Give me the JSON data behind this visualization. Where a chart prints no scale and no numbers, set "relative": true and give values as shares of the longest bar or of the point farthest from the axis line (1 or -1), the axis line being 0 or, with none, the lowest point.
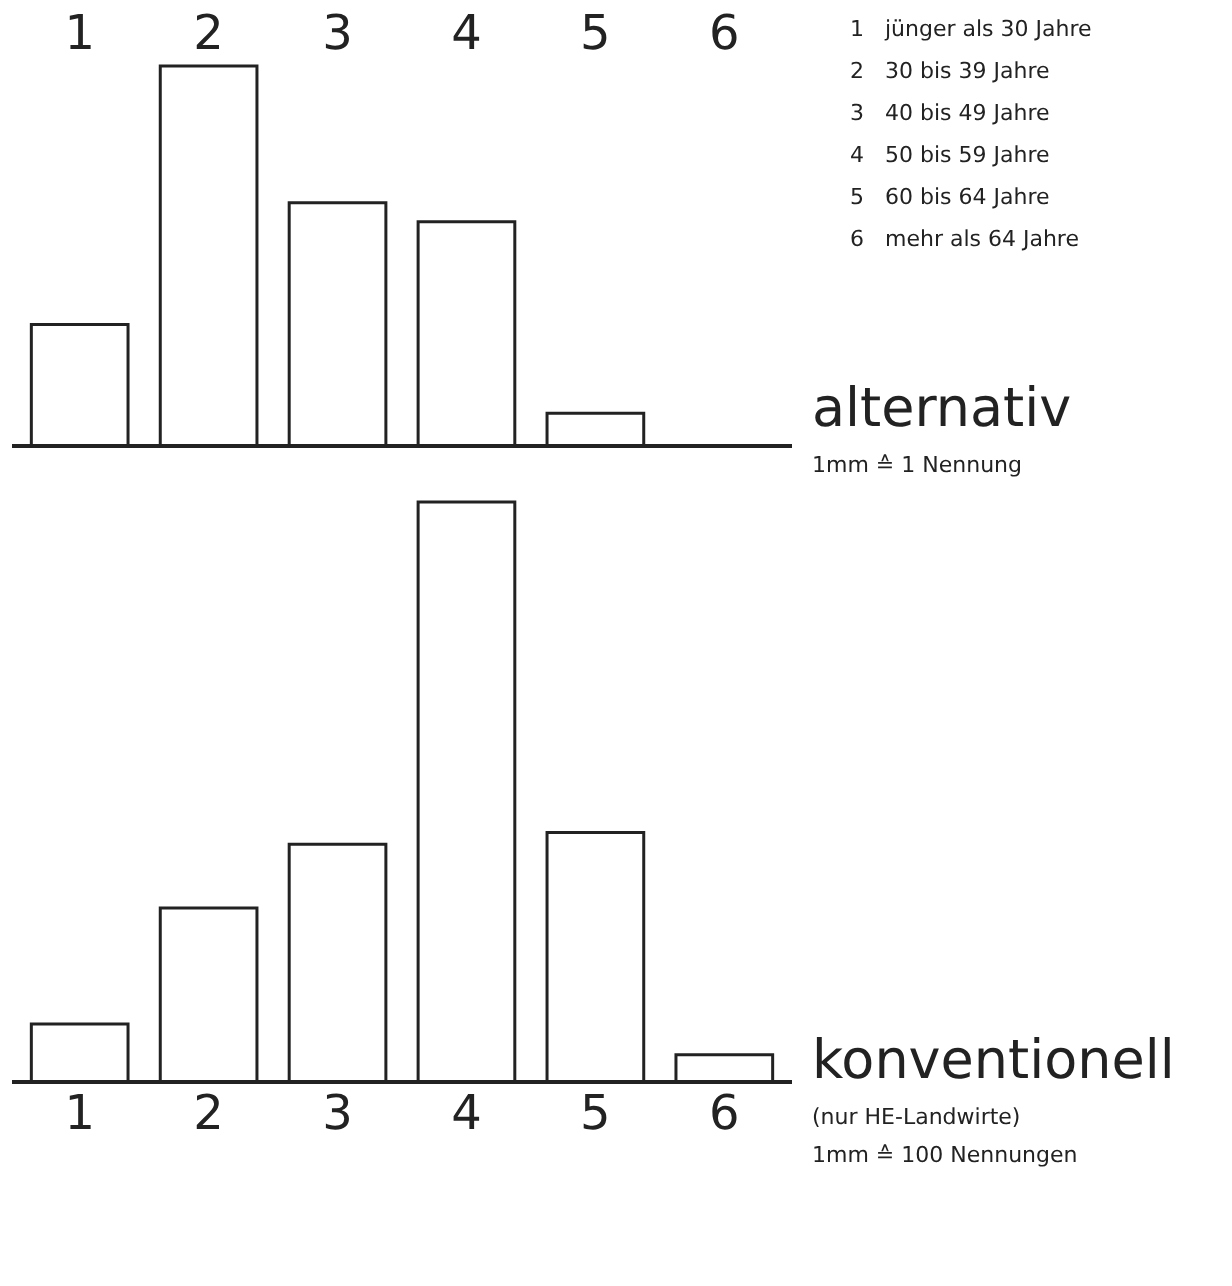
{
  "chart_data": [
    {
      "type": "bar",
      "title": "alternativ",
      "relative": true,
      "categories": [
        "1",
        "2",
        "3",
        "4",
        "5",
        "6"
      ],
      "values": [
        0.32,
        1,
        0.64,
        0.59,
        0.086,
        null
      ],
      "color": "#ffffff",
      "annotations": [
        "1   jünger als 30 Jahre",
        "2   30 bis 39 Jahre",
        "3   40 bis 49 Jahre",
        "4   50 bis 59 Jahre",
        "5   60 bis 64 Jahre",
        "6   mehr als 64 Jahre",
        "1mm ≙ 1 Nennung"
      ]
    },
    {
      "type": "bar",
      "title": "konventionell",
      "relative": true,
      "categories": [
        "1",
        "2",
        "3",
        "4",
        "5",
        "6"
      ],
      "values": [
        0.1,
        0.3,
        0.41,
        1,
        0.43,
        0.047
      ],
      "color": "#ffffff",
      "annotations": [
        "(nur HE-Landwirte)",
        "1mm ≙ 100 Nennungen"
      ]
    }
  ]
}
